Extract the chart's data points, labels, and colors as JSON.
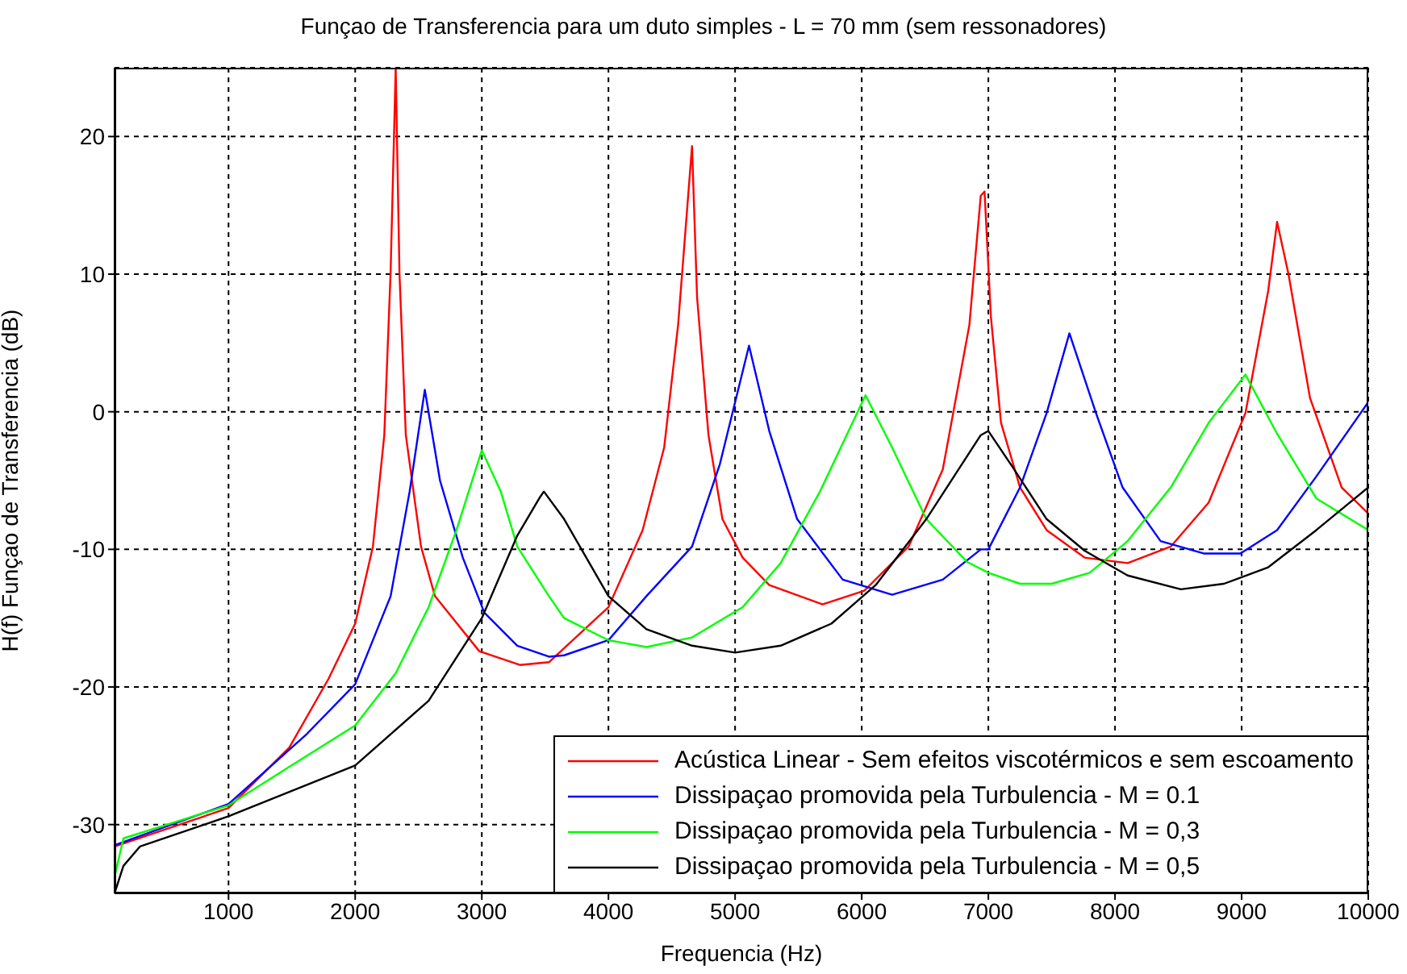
{
  "chart_data": {
    "type": "line",
    "title": "Funçao de Transferencia para um duto simples - L = 70 mm (sem ressonadores)",
    "xlabel": "Frequencia (Hz)",
    "ylabel": "H(f) Funçao de Transferencia (dB)",
    "xlim": [
      100,
      10000
    ],
    "xticks": [
      1000,
      2000,
      3000,
      4000,
      5000,
      6000,
      7000,
      8000,
      9000,
      10000
    ],
    "ylim": [
      -35,
      25
    ],
    "yticks": [
      -30,
      -20,
      -10,
      0,
      10,
      20
    ],
    "grid": true,
    "legend": "bottom right",
    "marker": "none",
    "line_style": "solid",
    "series": [
      {
        "name": "Acústica Linear - Sem efeitos viscotérmicos e sem escoamento",
        "color": "#ff0000",
        "x": [
          100,
          1000,
          1480,
          1790,
          2000,
          2140,
          2230,
          2280,
          2320,
          2350,
          2400,
          2520,
          2630,
          2980,
          3300,
          3530,
          4000,
          4270,
          4440,
          4550,
          4660,
          4700,
          4790,
          4900,
          5060,
          5270,
          5690,
          6020,
          6370,
          6640,
          6850,
          6940,
          6970,
          7020,
          7100,
          7250,
          7460,
          7760,
          8100,
          8440,
          8740,
          9030,
          9210,
          9280,
          9370,
          9540,
          9790,
          10000
        ],
        "values": [
          -31.6,
          -28.8,
          -24.4,
          -19.4,
          -15.4,
          -9.8,
          -1.7,
          10.2,
          25,
          10,
          -1.7,
          -9.8,
          -13.4,
          -17.4,
          -18.4,
          -18.2,
          -14.2,
          -8.6,
          -2.6,
          6.3,
          19.3,
          8.3,
          -1.7,
          -7.8,
          -10.6,
          -12.6,
          -14,
          -13,
          -9.8,
          -4.2,
          6.3,
          15.7,
          16,
          6.9,
          -0.8,
          -5.5,
          -8.6,
          -10.6,
          -11,
          -9.8,
          -6.6,
          -0.1,
          8.8,
          13.8,
          10,
          1,
          -5.5,
          -7.4
        ]
      },
      {
        "name": "Dissipaçao promovida pela Turbulencia - M = 0.1",
        "color": "#0000ff",
        "x": [
          100,
          1000,
          1620,
          2000,
          2280,
          2430,
          2550,
          2670,
          2850,
          3020,
          3280,
          3530,
          3650,
          4000,
          4300,
          4660,
          4880,
          5110,
          5270,
          5490,
          5850,
          6240,
          6640,
          6940,
          7000,
          7250,
          7460,
          7640,
          7850,
          8060,
          8360,
          8700,
          8990,
          9280,
          9590,
          10000
        ],
        "values": [
          -31.5,
          -28.5,
          -23.4,
          -19.8,
          -13.4,
          -5.8,
          1.6,
          -5,
          -10.6,
          -14.6,
          -17,
          -17.8,
          -17.7,
          -16.6,
          -13.4,
          -9.8,
          -3.8,
          4.8,
          -1.4,
          -7.8,
          -12.2,
          -13.3,
          -12.2,
          -10,
          -10,
          -5.5,
          -0.1,
          5.7,
          -0.1,
          -5.5,
          -9.4,
          -10.3,
          -10.3,
          -8.6,
          -4.7,
          0.7
        ]
      },
      {
        "name": "Dissipaçao promovida pela Turbulencia - M = 0,3",
        "color": "#00ff00",
        "x": [
          100,
          170,
          1000,
          1480,
          2000,
          2320,
          2580,
          2800,
          3000,
          3150,
          3280,
          3530,
          3650,
          4000,
          4300,
          4660,
          5060,
          5360,
          5670,
          6030,
          6240,
          6510,
          6830,
          7000,
          7250,
          7500,
          7800,
          8100,
          8440,
          8740,
          9030,
          9280,
          9590,
          10000
        ],
        "values": [
          -33.8,
          -31,
          -28.6,
          -25.8,
          -22.8,
          -19,
          -14.2,
          -8.6,
          -2.8,
          -5.8,
          -9.8,
          -13.4,
          -15,
          -16.6,
          -17.1,
          -16.4,
          -14.2,
          -11,
          -5.8,
          1.2,
          -2.6,
          -7.8,
          -10.9,
          -11.7,
          -12.5,
          -12.5,
          -11.7,
          -9.4,
          -5.5,
          -0.8,
          2.7,
          -1.6,
          -6.3,
          -8.6
        ]
      },
      {
        "name": "Dissipaçao promovida pela Turbulencia - M = 0,5",
        "color": "#000000",
        "x": [
          100,
          170,
          300,
          1000,
          2000,
          2580,
          3000,
          3280,
          3460,
          3490,
          3650,
          4000,
          4300,
          4660,
          5000,
          5360,
          5760,
          6110,
          6510,
          6940,
          7000,
          7190,
          7460,
          7760,
          8100,
          8520,
          8860,
          9210,
          9590,
          10000
        ],
        "values": [
          -35,
          -33,
          -31.6,
          -29.4,
          -25.7,
          -21,
          -15,
          -9,
          -6.2,
          -5.8,
          -7.8,
          -13.4,
          -15.8,
          -17,
          -17.5,
          -17,
          -15.4,
          -12.6,
          -7.8,
          -1.7,
          -1.4,
          -4,
          -7.8,
          -10.1,
          -11.9,
          -12.9,
          -12.5,
          -11.3,
          -8.6,
          -5.5
        ]
      }
    ]
  }
}
